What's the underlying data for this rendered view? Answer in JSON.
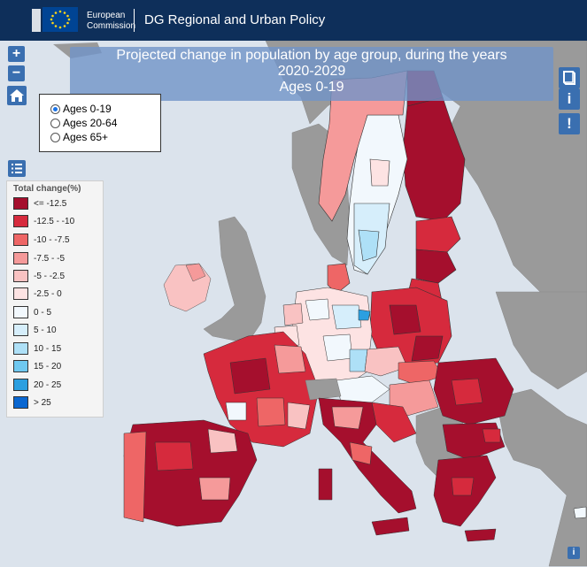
{
  "header": {
    "org_line1": "European",
    "org_line2": "Commission",
    "dg_title": "DG Regional and Urban Policy"
  },
  "map_title": {
    "line1": "Projected change in population by age group, during the years",
    "line2": "2020-2029",
    "line3": "Ages 0-19"
  },
  "controls": {
    "zoom_in": "+",
    "zoom_out": "−",
    "info_button": "i",
    "alert_button": "!",
    "corner_info": "i"
  },
  "age_group_selector": {
    "options": [
      "Ages 0-19",
      "Ages 20-64",
      "Ages 65+"
    ],
    "selected": "Ages 0-19"
  },
  "legend": {
    "title": "Total change(%)",
    "items": [
      {
        "label": "<= -12.5",
        "color": "#a50f2d"
      },
      {
        "label": "-12.5 - -10",
        "color": "#d62a3d"
      },
      {
        "label": "-10 - -7.5",
        "color": "#ee6666"
      },
      {
        "label": "-7.5 - -5",
        "color": "#f59a9a"
      },
      {
        "label": "-5 - -2.5",
        "color": "#f9c2c2"
      },
      {
        "label": "-2.5 - 0",
        "color": "#fde3e3"
      },
      {
        "label": "0 - 5",
        "color": "#f2f8fd"
      },
      {
        "label": "5 - 10",
        "color": "#d6eefb"
      },
      {
        "label": "10 - 15",
        "color": "#aee0f7"
      },
      {
        "label": "15 - 20",
        "color": "#6fc8f0"
      },
      {
        "label": "20 - 25",
        "color": "#2b9fe0"
      },
      {
        "label": "> 25",
        "color": "#0a67d1"
      }
    ]
  },
  "colors": {
    "header_bg": "#0e2f5a",
    "sea": "#dbe3ec",
    "non_eu_land": "#9a9a9a",
    "control_blue": "#3a6fb0"
  }
}
